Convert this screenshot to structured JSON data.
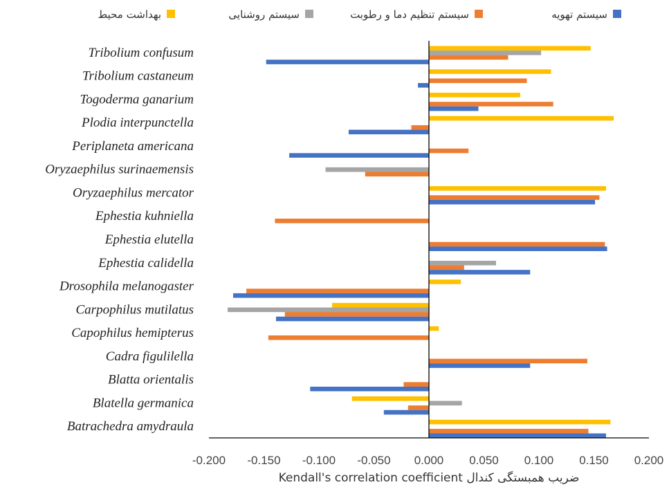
{
  "chart_data": {
    "type": "bar",
    "orientation": "horizontal",
    "xlabel": "Kendall's correlation coefficient ضریب همبستگی کندال",
    "xlim": [
      -0.2,
      0.2
    ],
    "xticks": [
      "-0.200",
      "-0.150",
      "-0.100",
      "-0.050",
      "0.000",
      "0.050",
      "0.100",
      "0.150",
      "0.200"
    ],
    "legend_position": "top",
    "categories": [
      "Tribolium confusum",
      "Tribolium castaneum",
      "Togoderma ganarium",
      "Plodia interpunctella",
      "Periplaneta americana",
      "Oryzaephilus surinaemensis",
      "Oryzaephilus mercator",
      "Ephestia kuhniella",
      "Ephestia elutella",
      "Ephestia calidella",
      "Drosophila melanogaster",
      "Carpophilus mutilatus",
      "Capophilus hemipterus",
      "Cadra figulilella",
      "Blatta orientalis",
      "Blatella germanica",
      "Batrachedra amydraula"
    ],
    "series": [
      {
        "name": "بهداشت محیط",
        "color": "#FFC000",
        "values": [
          0.147,
          0.111,
          0.083,
          0.168,
          0,
          0,
          0.161,
          0,
          0,
          0,
          0.029,
          -0.088,
          0.009,
          0,
          0,
          -0.07,
          0.165
        ]
      },
      {
        "name": "سیستم روشنایی",
        "color": "#A5A5A5",
        "values": [
          0.102,
          0,
          0,
          0,
          0,
          -0.094,
          0,
          0,
          0,
          0.061,
          0,
          -0.183,
          0,
          0,
          0,
          0.03,
          0
        ]
      },
      {
        "name": "سیستم تنظیم دما و رطوبت",
        "color": "#ED7D31",
        "values": [
          0.072,
          0.089,
          0.113,
          -0.016,
          0.036,
          -0.058,
          0.155,
          -0.14,
          0.16,
          0.032,
          -0.166,
          -0.131,
          -0.146,
          0.144,
          -0.023,
          -0.019,
          0.145
        ]
      },
      {
        "name": "سیستم تهویه",
        "color": "#4472C4",
        "values": [
          -0.148,
          -0.01,
          0.045,
          -0.073,
          -0.127,
          0,
          0.151,
          0,
          0.162,
          0.092,
          -0.178,
          -0.139,
          0,
          0.092,
          -0.108,
          -0.041,
          0.161
        ]
      }
    ]
  },
  "legend_order": [
    3,
    2,
    1,
    0
  ]
}
